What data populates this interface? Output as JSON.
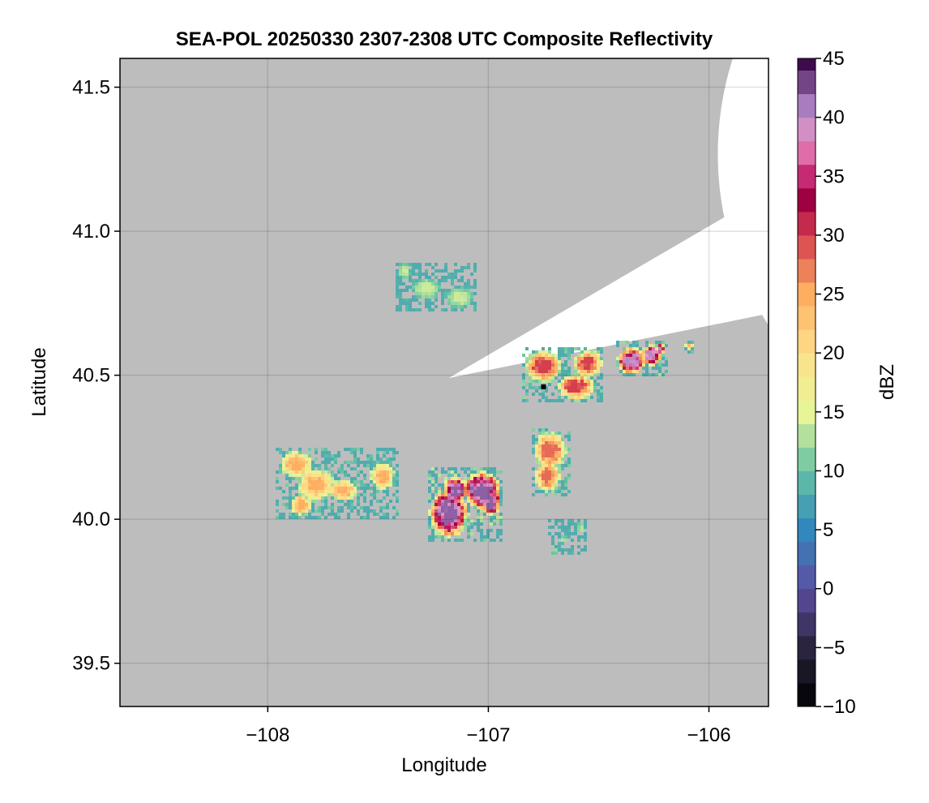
{
  "chart_data": {
    "type": "heatmap",
    "title": "SEA-POL 20250330 2307-2308 UTC Composite Reflectivity",
    "xlabel": "Longitude",
    "ylabel": "Latitude",
    "xlim": [
      -108.67,
      -105.73
    ],
    "ylim": [
      39.35,
      41.6
    ],
    "x_ticks": [
      -108,
      -107,
      -106
    ],
    "x_tick_labels": [
      "−108",
      "−107",
      "−106"
    ],
    "y_ticks": [
      39.5,
      40.0,
      40.5,
      41.0,
      41.5
    ],
    "y_tick_labels": [
      "39.5",
      "40.0",
      "40.5",
      "41.0",
      "41.5"
    ],
    "grid": true,
    "background_color": "#bdbdbd",
    "coverage_color": "#ffffff",
    "radar": {
      "center_lon": -107.18,
      "center_lat": 40.49,
      "range_lon_deg": 1.45,
      "range_lat_deg": 1.1,
      "blocked_sector_deg": [
        30.5,
        11.5
      ]
    },
    "radar_site_marker": {
      "lon": -106.75,
      "lat": 40.46,
      "color": "#000000"
    },
    "colorbar": {
      "label": "dBZ",
      "min": -10,
      "max": 45,
      "step": 2,
      "ticks": [
        -10,
        -5,
        0,
        5,
        10,
        15,
        20,
        25,
        30,
        35,
        40,
        45
      ],
      "tick_labels": [
        "−10",
        "−5",
        "0",
        "5",
        "10",
        "15",
        "20",
        "25",
        "30",
        "35",
        "40",
        "45"
      ],
      "colormap": "spectral_extended",
      "colormap_stops": [
        {
          "v": -10,
          "c": "#000000"
        },
        {
          "v": -5,
          "c": "#2a2440"
        },
        {
          "v": 0,
          "c": "#5e4fa2"
        },
        {
          "v": 5,
          "c": "#3288bd"
        },
        {
          "v": 10,
          "c": "#66c2a5"
        },
        {
          "v": 15,
          "c": "#e6f598"
        },
        {
          "v": 20,
          "c": "#fee08b"
        },
        {
          "v": 25,
          "c": "#fdae61"
        },
        {
          "v": 30,
          "c": "#d53e4f"
        },
        {
          "v": 33,
          "c": "#9e0142"
        },
        {
          "v": 36,
          "c": "#d8408a"
        },
        {
          "v": 38,
          "c": "#e699c8"
        },
        {
          "v": 41,
          "c": "#a97cc0"
        },
        {
          "v": 45,
          "c": "#3f0b4d"
        }
      ]
    },
    "echo_regions": [
      {
        "name": "north-band",
        "lon": -107.22,
        "lat": 40.8,
        "rlon": 0.14,
        "rlat": 0.06,
        "peak_dbz": 14,
        "blobs": [
          [
            -107.38,
            40.86,
            0.03,
            0.03
          ],
          [
            -107.28,
            40.8,
            0.07,
            0.04
          ],
          [
            -107.13,
            40.77,
            0.07,
            0.04
          ]
        ]
      },
      {
        "name": "western-complex",
        "lon": -107.65,
        "lat": 40.12,
        "rlon": 0.3,
        "rlat": 0.14,
        "peak_dbz": 25,
        "blobs": [
          [
            -107.87,
            40.19,
            0.08,
            0.05
          ],
          [
            -107.78,
            40.12,
            0.09,
            0.06
          ],
          [
            -107.66,
            40.1,
            0.07,
            0.04
          ],
          [
            -107.48,
            40.15,
            0.06,
            0.05
          ],
          [
            -107.85,
            40.05,
            0.05,
            0.04
          ]
        ]
      },
      {
        "name": "central-south-storm",
        "lon": -107.05,
        "lat": 40.05,
        "rlon": 0.2,
        "rlat": 0.14,
        "peak_dbz": 42,
        "blobs": [
          [
            -107.18,
            40.02,
            0.09,
            0.09
          ],
          [
            -107.03,
            40.1,
            0.09,
            0.07
          ],
          [
            -106.99,
            40.06,
            0.05,
            0.05
          ],
          [
            -107.15,
            40.1,
            0.06,
            0.05
          ]
        ]
      },
      {
        "name": "eastern-cell",
        "lon": -106.72,
        "lat": 40.22,
        "rlon": 0.09,
        "rlat": 0.1,
        "peak_dbz": 28,
        "blobs": [
          [
            -106.72,
            40.24,
            0.08,
            0.07
          ],
          [
            -106.73,
            40.15,
            0.06,
            0.06
          ]
        ]
      },
      {
        "name": "northeast-complex",
        "lon": -106.65,
        "lat": 40.5,
        "rlon": 0.18,
        "rlat": 0.09,
        "peak_dbz": 30,
        "blobs": [
          [
            -106.75,
            40.53,
            0.09,
            0.06
          ],
          [
            -106.6,
            40.46,
            0.09,
            0.05
          ],
          [
            -106.55,
            40.54,
            0.07,
            0.05
          ]
        ]
      },
      {
        "name": "far-east-complex",
        "lon": -106.3,
        "lat": 40.55,
        "rlon": 0.11,
        "rlat": 0.07,
        "peak_dbz": 40,
        "blobs": [
          [
            -106.35,
            40.55,
            0.07,
            0.05
          ],
          [
            -106.26,
            40.57,
            0.05,
            0.04
          ],
          [
            -106.22,
            40.59,
            0.02,
            0.02
          ]
        ]
      },
      {
        "name": "isolated-east-cell",
        "lon": -106.09,
        "lat": 40.6,
        "rlon": 0.02,
        "rlat": 0.015,
        "peak_dbz": 24,
        "blobs": [
          [
            -106.09,
            40.6,
            0.02,
            0.015
          ]
        ]
      },
      {
        "name": "southeast-fragments",
        "lon": -106.65,
        "lat": 39.95,
        "rlon": 0.08,
        "rlat": 0.05,
        "peak_dbz": 13,
        "blobs": [
          [
            -106.58,
            39.97,
            0.02,
            0.02
          ],
          [
            -106.66,
            39.93,
            0.02,
            0.015
          ],
          [
            -106.7,
            39.89,
            0.015,
            0.012
          ]
        ]
      }
    ]
  }
}
